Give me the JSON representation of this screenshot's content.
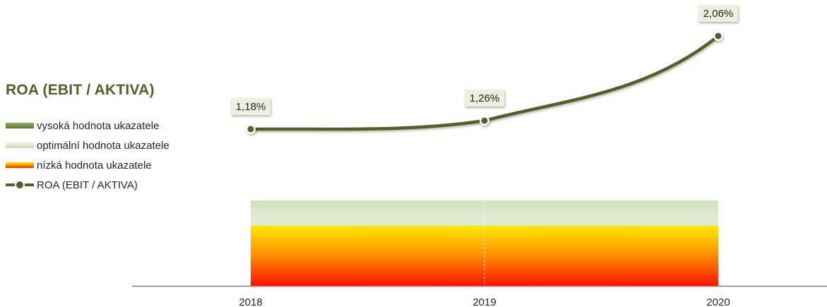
{
  "title": "ROA (EBIT / AKTIVA)",
  "legend": [
    {
      "key": "high",
      "label": "vysoká hodnota ukazatele"
    },
    {
      "key": "opt",
      "label": "optimální hodnota ukazatele"
    },
    {
      "key": "low",
      "label": "nízká hodnota ukazatele"
    },
    {
      "key": "line",
      "label": "ROA (EBIT / AKTIVA)"
    }
  ],
  "colors": {
    "title": "#4f6228",
    "line": "#4f6228",
    "optimal_band": "#d7e4c4",
    "low_band_top": "#ffe500",
    "low_band_bottom": "#ff1a00",
    "axis": "#808080"
  },
  "chart_data": {
    "type": "line",
    "categories": [
      "2018",
      "2019",
      "2020"
    ],
    "series": [
      {
        "name": "ROA (EBIT / AKTIVA)",
        "values": [
          1.18,
          1.26,
          2.06
        ],
        "labels": [
          "1,18%",
          "1,26%",
          "2,06%"
        ]
      }
    ],
    "bands": [
      {
        "name": "nízká hodnota ukazatele",
        "range": [
          0,
          0.47
        ]
      },
      {
        "name": "optimální hodnota ukazatele",
        "range": [
          0.47,
          0.7
        ]
      }
    ],
    "ylim": [
      -0.3,
      2.2
    ],
    "grid": false,
    "legend_position": "left",
    "marker": "circle"
  }
}
